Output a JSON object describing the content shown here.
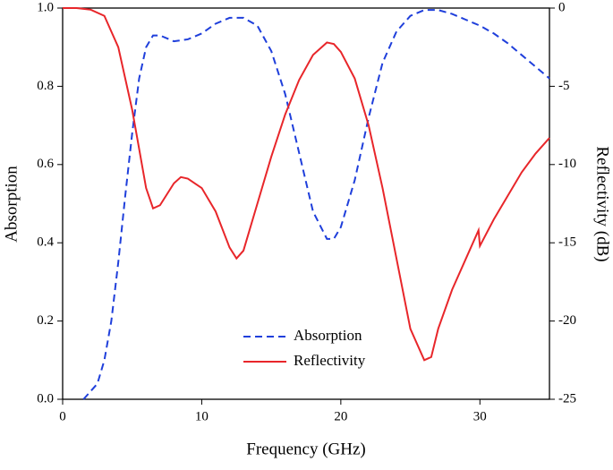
{
  "chart_data": {
    "type": "line",
    "x_label": "Frequency (GHz)",
    "y_label": "Absorption",
    "y2_label": "Reflectivity (dB)",
    "xlim": [
      0,
      35
    ],
    "xticks": [
      0,
      10,
      20,
      30
    ],
    "ylim": [
      0,
      1
    ],
    "yticks": [
      {
        "value": 0,
        "label": "0.0"
      },
      0.2,
      0.4,
      0.6,
      0.8,
      {
        "value": 1,
        "label": "1.0"
      }
    ],
    "y2lim": [
      -25,
      0
    ],
    "y2ticks": [
      -25,
      -20,
      -15,
      -10,
      -5,
      0
    ],
    "legend": "lower center",
    "series": [
      {
        "name": "Absorption",
        "color": "#1f3fdb",
        "dash": true,
        "x": [
          1.5,
          2.5,
          3,
          3.5,
          4,
          4.5,
          5,
          5.5,
          6,
          6.5,
          7,
          8,
          9,
          10,
          11,
          12,
          13,
          14,
          15,
          16,
          17,
          18,
          19,
          19.5,
          20,
          21,
          22,
          23,
          24,
          25,
          26,
          27,
          28,
          29,
          30,
          31,
          32,
          33,
          34,
          35
        ],
        "values": [
          0.0,
          0.04,
          0.1,
          0.2,
          0.35,
          0.52,
          0.68,
          0.82,
          0.9,
          0.93,
          0.93,
          0.915,
          0.92,
          0.935,
          0.96,
          0.975,
          0.975,
          0.955,
          0.89,
          0.78,
          0.63,
          0.48,
          0.41,
          0.41,
          0.44,
          0.56,
          0.72,
          0.86,
          0.94,
          0.98,
          0.995,
          0.995,
          0.985,
          0.97,
          0.955,
          0.935,
          0.91,
          0.88,
          0.85,
          0.82
        ]
      },
      {
        "name": "Reflectivity",
        "color": "#e8262a",
        "dash": false,
        "axis": "y2",
        "x": [
          0,
          1,
          2,
          3,
          4,
          5,
          5.5,
          6,
          6.5,
          7,
          8,
          8.5,
          9,
          10,
          11,
          12,
          12.5,
          13,
          14,
          15,
          16,
          17,
          18,
          19,
          19.5,
          20,
          21,
          22,
          23,
          24,
          25,
          26,
          26.5,
          27,
          28,
          29,
          29.9,
          30,
          31,
          32,
          33,
          34,
          35
        ],
        "values": [
          0,
          0,
          -0.1,
          -0.5,
          -2.5,
          -6.5,
          -9,
          -11.5,
          -12.8,
          -12.6,
          -11.2,
          -10.8,
          -10.9,
          -11.5,
          -13,
          -15.3,
          -16,
          -15.5,
          -12.5,
          -9.5,
          -6.8,
          -4.6,
          -3,
          -2.2,
          -2.3,
          -2.8,
          -4.5,
          -7.5,
          -11.5,
          -16,
          -20.5,
          -22.5,
          -22.3,
          -20.5,
          -18,
          -16,
          -14.2,
          -15.2,
          -13.5,
          -12,
          -10.5,
          -9.3,
          -8.3
        ]
      }
    ]
  }
}
